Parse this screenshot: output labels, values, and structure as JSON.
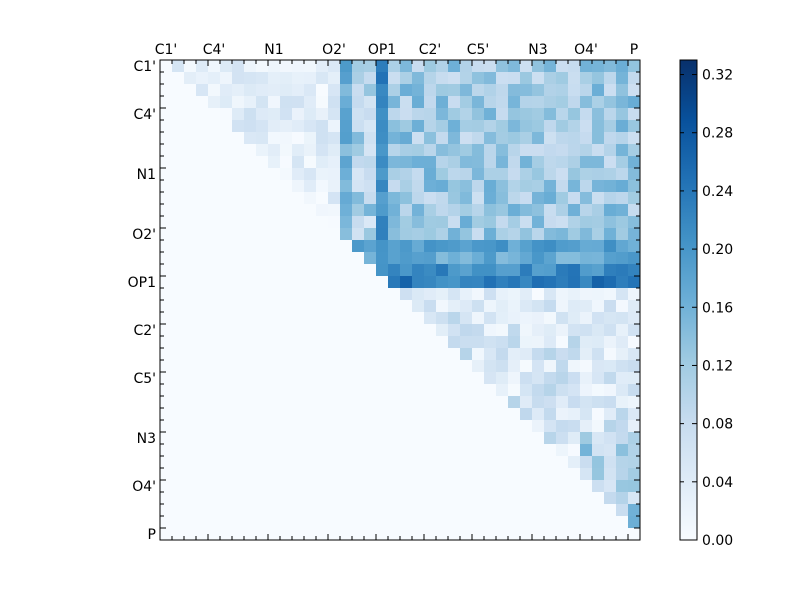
{
  "chart_data": {
    "type": "heatmap",
    "title": "",
    "xlabel": "",
    "ylabel": "",
    "grid": false,
    "n": 40,
    "labels": [
      "C1'",
      "C4'",
      "N1",
      "O2'",
      "OP1",
      "C2'",
      "C5'",
      "N3",
      "O4'",
      "P"
    ],
    "label_indices": [
      0,
      4,
      9,
      14,
      18,
      22,
      26,
      31,
      35,
      39
    ],
    "x_ticks_position": "top",
    "y_ticks_position": "left",
    "colormap": "Blues",
    "color_stops": [
      "#f7fbff",
      "#deebf7",
      "#c6dbef",
      "#9ecae1",
      "#6baed6",
      "#4292c6",
      "#2171b5",
      "#08519c",
      "#08306b"
    ],
    "colorbar": {
      "vmin": 0.0,
      "vmax": 0.33,
      "ticks": [
        "0.00",
        "0.04",
        "0.08",
        "0.12",
        "0.16",
        "0.20",
        "0.24",
        "0.28",
        "0.32"
      ],
      "placement": "right"
    },
    "strong_rows": [
      {
        "row": 17,
        "level": 0.27,
        "range": [
          0.18,
          0.25
        ]
      },
      {
        "row": 18,
        "level": 0.29,
        "range": [
          0.2,
          0.27
        ]
      },
      {
        "row": 15,
        "level": 0.23,
        "range": [
          0.16,
          0.22
        ]
      },
      {
        "row": 16,
        "level": 0.2,
        "range": [
          0.14,
          0.2
        ]
      }
    ],
    "strong_cols": [
      {
        "col": 18,
        "level": 0.25,
        "range": [
          0.18,
          0.25
        ]
      },
      {
        "col": 15,
        "level": 0.2,
        "range": [
          0.12,
          0.2
        ]
      }
    ]
  }
}
